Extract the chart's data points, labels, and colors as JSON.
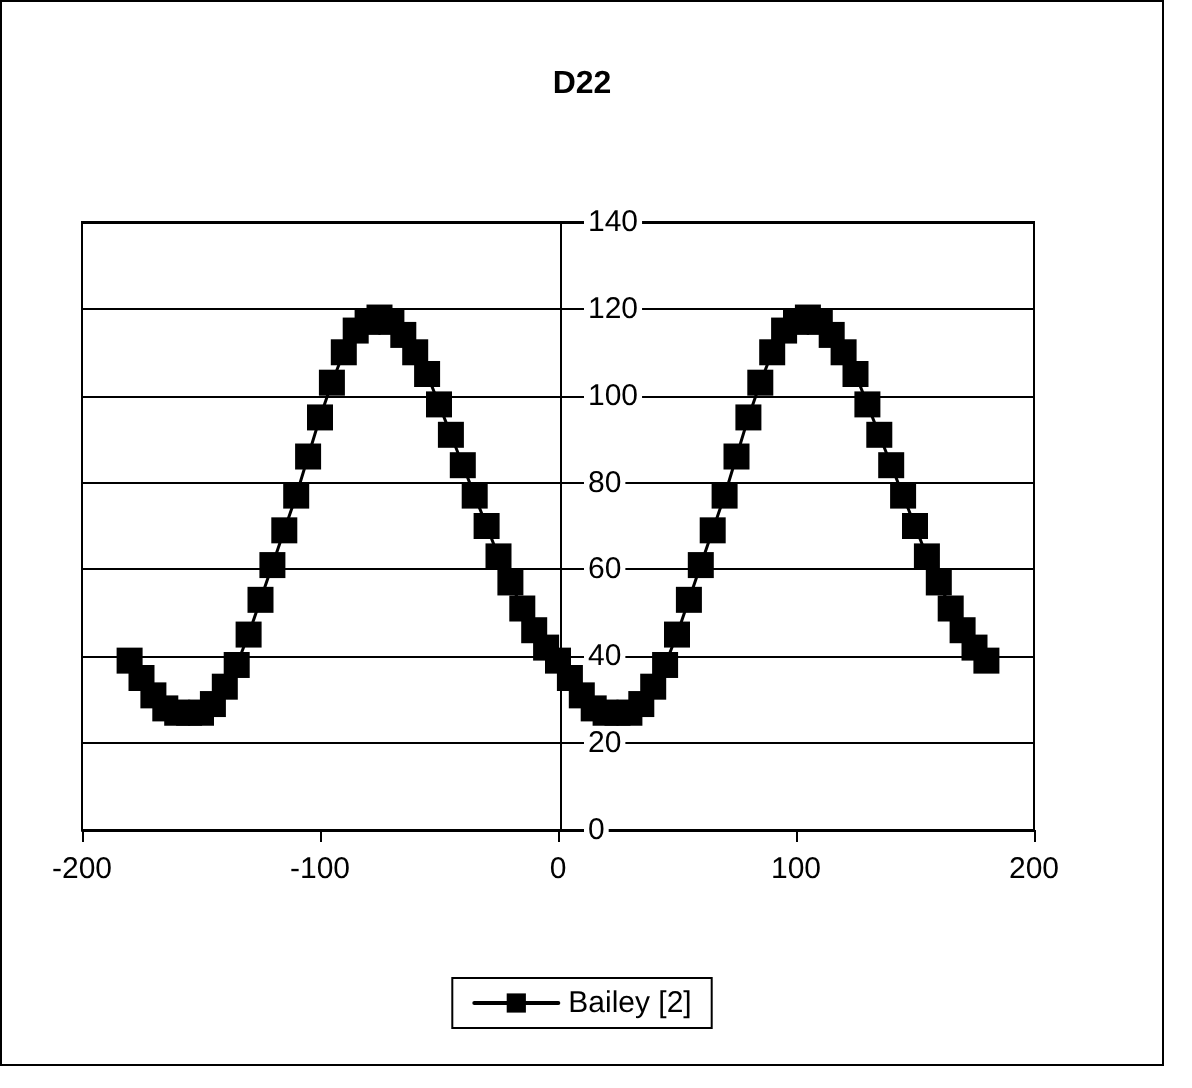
{
  "chart_data": {
    "type": "line",
    "title": "D22",
    "x": [
      -180,
      -175,
      -170,
      -165,
      -160,
      -155,
      -150,
      -145,
      -140,
      -135,
      -130,
      -125,
      -120,
      -115,
      -110,
      -105,
      -100,
      -95,
      -90,
      -85,
      -80,
      -75,
      -70,
      -65,
      -60,
      -55,
      -50,
      -45,
      -40,
      -35,
      -30,
      -25,
      -20,
      -15,
      -10,
      -5,
      0,
      5,
      10,
      15,
      20,
      25,
      30,
      35,
      40,
      45,
      50,
      55,
      60,
      65,
      70,
      75,
      80,
      85,
      90,
      95,
      100,
      105,
      110,
      115,
      120,
      125,
      130,
      135,
      140,
      145,
      150,
      155,
      160,
      165,
      170,
      175,
      180
    ],
    "series": [
      {
        "name": "Bailey [2]",
        "color": "#000000",
        "values": [
          39,
          35,
          31,
          28,
          27,
          27,
          27,
          29,
          33,
          38,
          45,
          53,
          61,
          69,
          77,
          86,
          95,
          103,
          110,
          115,
          117,
          118,
          117,
          114,
          110,
          105,
          98,
          91,
          84,
          77,
          70,
          63,
          57,
          51,
          46,
          42,
          39,
          35,
          31,
          28,
          27,
          27,
          27,
          29,
          33,
          38,
          45,
          53,
          61,
          69,
          77,
          86,
          95,
          103,
          110,
          115,
          117,
          118,
          117,
          114,
          110,
          105,
          98,
          91,
          84,
          77,
          70,
          63,
          57,
          51,
          46,
          42,
          39
        ]
      }
    ],
    "xlim": [
      -200,
      200
    ],
    "xticks": [
      -200,
      -100,
      0,
      100,
      200
    ],
    "ylim": [
      0,
      140
    ],
    "yticks": [
      0,
      20,
      40,
      60,
      80,
      100,
      120,
      140
    ],
    "grid": "y",
    "legend": "bottom",
    "marker": "square",
    "line_style": "solid"
  }
}
